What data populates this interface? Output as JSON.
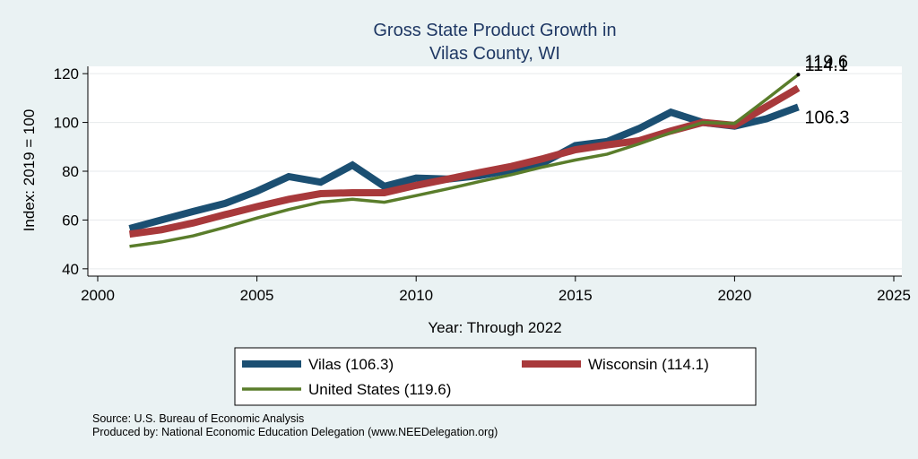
{
  "chart_data": {
    "type": "line",
    "title_lines": [
      "Gross State Product Growth in",
      "Vilas County, WI"
    ],
    "xlabel": "Year: Through 2022",
    "ylabel": "Index: 2019 = 100",
    "xlim": [
      2000,
      2025
    ],
    "ylim": [
      37,
      123
    ],
    "x_ticks": [
      2000,
      2005,
      2010,
      2015,
      2020,
      2025
    ],
    "y_ticks": [
      40,
      60,
      80,
      100,
      120
    ],
    "grid": "horizontal",
    "x": [
      2001,
      2002,
      2003,
      2004,
      2005,
      2006,
      2007,
      2008,
      2009,
      2010,
      2011,
      2012,
      2013,
      2014,
      2015,
      2016,
      2017,
      2018,
      2019,
      2020,
      2021,
      2022
    ],
    "series": [
      {
        "name": "Vilas",
        "color": "#1b4f72",
        "values": [
          56.5,
          60,
          63.5,
          66.8,
          71.8,
          77.8,
          75.5,
          82.5,
          73.8,
          77.2,
          76.8,
          78.2,
          80.5,
          83.5,
          90.5,
          92.2,
          97.5,
          104.2,
          100,
          98.5,
          101.5,
          106.3
        ]
      },
      {
        "name": "Wisconsin",
        "color": "#a8393b",
        "values": [
          54.2,
          56,
          58.8,
          62.2,
          65.5,
          68.5,
          70.8,
          71.2,
          71.2,
          74.2,
          76.8,
          79.5,
          82,
          85.2,
          88.8,
          90.8,
          92.5,
          96.5,
          100,
          98.8,
          106.5,
          114.1
        ]
      },
      {
        "name": "United States",
        "color": "#5a7d2b",
        "values": [
          49.2,
          51,
          53.5,
          57,
          60.8,
          64.3,
          67.3,
          68.5,
          67.3,
          70,
          72.8,
          75.8,
          78.6,
          81.8,
          84.6,
          87,
          91.2,
          95.8,
          100,
          99.6,
          109.5,
          119.6
        ]
      }
    ],
    "end_labels": [
      "119.6",
      "114.1",
      "106.3"
    ],
    "legend": {
      "placement": "bottom",
      "items": [
        "Vilas  (106.3)",
        "Wisconsin (114.1)",
        "United States (119.6)"
      ]
    }
  },
  "footer": {
    "source": "Source: U.S. Bureau of Economic Analysis",
    "produced": "Produced by: National Economic Education Delegation (www.NEEDelegation.org)"
  }
}
